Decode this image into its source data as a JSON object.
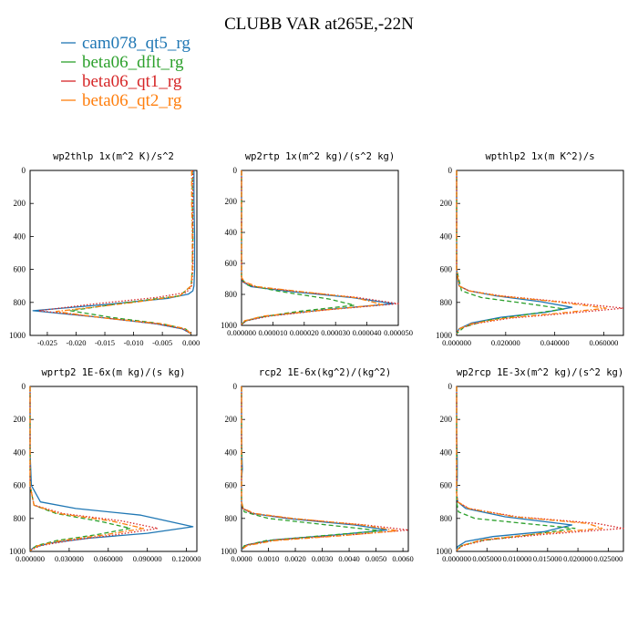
{
  "title": "CLUBB VAR at265E,-22N",
  "legend": [
    {
      "name": "cam078_qt5_rg",
      "color": "#1f77b4",
      "dash": "solid"
    },
    {
      "name": "beta06_dflt_rg",
      "color": "#2ca02c",
      "dash": "dashed"
    },
    {
      "name": "beta06_qt1_rg",
      "color": "#d62728",
      "dash": "dotted"
    },
    {
      "name": "beta06_qt2_rg",
      "color": "#ff7f0e",
      "dash": "dashdot"
    }
  ],
  "chart_data": [
    {
      "type": "line",
      "title": "wp2thlp  1x(m^2 K)/s^2",
      "ylim": [
        1000,
        0
      ],
      "yticks": [
        "0",
        "200",
        "400",
        "600",
        "800",
        "1000"
      ],
      "xlim": [
        -0.028,
        0.001
      ],
      "xticks": [
        {
          "v": -0.025,
          "label": "-0.025"
        },
        {
          "v": -0.02,
          "label": "-0.020"
        },
        {
          "v": -0.015,
          "label": "-0.015"
        },
        {
          "v": -0.01,
          "label": "-0.010"
        },
        {
          "v": -0.005,
          "label": "-0.005"
        },
        {
          "v": 0.0,
          "label": "0.000"
        }
      ],
      "series": [
        {
          "name": "cam078_qt5_rg",
          "x": [
            0.0005,
            0.0005,
            0.0006,
            0.0006,
            0.0005,
            0.0003,
            -0.0005,
            -0.004,
            -0.014,
            -0.0275,
            -0.016,
            -0.006,
            -0.0015,
            0
          ],
          "y": [
            0,
            200,
            400,
            600,
            700,
            730,
            750,
            775,
            810,
            850,
            890,
            930,
            960,
            990
          ]
        },
        {
          "name": "beta06_dflt_rg",
          "x": [
            0.0002,
            0.0002,
            0.0003,
            0.0002,
            0,
            -0.002,
            -0.011,
            -0.021,
            -0.014,
            -0.005,
            -0.001,
            0
          ],
          "y": [
            0,
            200,
            400,
            600,
            700,
            760,
            800,
            850,
            890,
            930,
            960,
            990
          ]
        },
        {
          "name": "beta06_qt1_rg",
          "x": [
            0.0003,
            0.0003,
            0.0003,
            0.0003,
            0.0001,
            -0.0008,
            -0.006,
            -0.017,
            -0.0265,
            -0.016,
            -0.006,
            -0.0015,
            0
          ],
          "y": [
            0,
            200,
            400,
            600,
            700,
            740,
            770,
            810,
            850,
            890,
            930,
            960,
            990
          ]
        },
        {
          "name": "beta06_qt2_rg",
          "x": [
            0.0001,
            0.0001,
            0.0002,
            0.0002,
            0,
            -0.002,
            -0.01,
            -0.0235,
            -0.015,
            -0.005,
            -0.001,
            0
          ],
          "y": [
            0,
            200,
            400,
            600,
            700,
            760,
            800,
            855,
            895,
            930,
            960,
            990
          ]
        }
      ]
    },
    {
      "type": "line",
      "title": "wp2rtp  1x(m^2 kg)/(s^2 kg)",
      "ylim": [
        1000,
        0
      ],
      "yticks": [
        "0",
        "200",
        "400",
        "600",
        "800",
        "1000"
      ],
      "xlim": [
        0,
        5e-05
      ],
      "xticks": [
        {
          "v": 0,
          "label": "0.000000"
        },
        {
          "v": 1e-05,
          "label": "0.000010"
        },
        {
          "v": 2e-05,
          "label": "0.000020"
        },
        {
          "v": 3e-05,
          "label": "0.000030"
        },
        {
          "v": 4e-05,
          "label": "0.000040"
        },
        {
          "v": 5e-05,
          "label": "0.000050"
        }
      ],
      "series": [
        {
          "name": "cam078_qt5_rg",
          "x": [
            0,
            0,
            0,
            0,
            0,
            5e-07,
            3e-06,
            1.5e-05,
            3.5e-05,
            4.85e-05,
            2.6e-05,
            8e-06,
            1.5e-06,
            0
          ],
          "y": [
            0,
            200,
            400,
            600,
            690,
            720,
            750,
            780,
            820,
            860,
            900,
            940,
            970,
            995
          ]
        },
        {
          "name": "beta06_dflt_rg",
          "x": [
            0,
            0,
            0,
            0,
            0,
            2e-06,
            1.2e-05,
            2.8e-05,
            3.6e-05,
            1.8e-05,
            5e-06,
            1e-06,
            0
          ],
          "y": [
            0,
            200,
            400,
            600,
            700,
            740,
            780,
            830,
            870,
            910,
            950,
            975,
            995
          ]
        },
        {
          "name": "beta06_qt1_rg",
          "x": [
            0,
            0,
            0,
            0,
            0,
            5e-07,
            4e-06,
            1.7e-05,
            3.7e-05,
            5e-05,
            2.7e-05,
            9e-06,
            1.5e-06,
            0
          ],
          "y": [
            0,
            200,
            400,
            600,
            690,
            720,
            750,
            780,
            820,
            860,
            900,
            940,
            970,
            995
          ]
        },
        {
          "name": "beta06_qt2_rg",
          "x": [
            0,
            0,
            0,
            0,
            0,
            1e-06,
            5e-06,
            1.8e-05,
            3.6e-05,
            4.5e-05,
            2.4e-05,
            7e-06,
            1e-06,
            0
          ],
          "y": [
            0,
            200,
            400,
            600,
            690,
            720,
            750,
            780,
            820,
            865,
            905,
            940,
            970,
            995
          ]
        }
      ]
    },
    {
      "type": "line",
      "title": "wpthlp2  1x(m K^2)/s",
      "ylim": [
        1000,
        0
      ],
      "yticks": [
        "0",
        "200",
        "400",
        "600",
        "800",
        "1000"
      ],
      "xlim": [
        0,
        0.068
      ],
      "xticks": [
        {
          "v": 0,
          "label": "0.000000"
        },
        {
          "v": 0.02,
          "label": "0.020000"
        },
        {
          "v": 0.04,
          "label": "0.040000"
        },
        {
          "v": 0.06,
          "label": "0.060000"
        }
      ],
      "series": [
        {
          "name": "cam078_qt5_rg",
          "x": [
            0,
            0,
            0,
            0,
            0.001,
            0.005,
            0.016,
            0.034,
            0.047,
            0.036,
            0.018,
            0.006,
            0.001,
            0
          ],
          "y": [
            0,
            200,
            400,
            600,
            700,
            730,
            760,
            795,
            830,
            860,
            890,
            925,
            960,
            990
          ]
        },
        {
          "name": "beta06_dflt_rg",
          "x": [
            0,
            0,
            0,
            0,
            0.002,
            0.01,
            0.03,
            0.044,
            0.03,
            0.012,
            0.003,
            0
          ],
          "y": [
            0,
            200,
            400,
            600,
            730,
            770,
            810,
            840,
            870,
            910,
            950,
            990
          ]
        },
        {
          "name": "beta06_qt1_rg",
          "x": [
            0,
            0,
            0,
            0,
            0.001,
            0.005,
            0.018,
            0.042,
            0.068,
            0.046,
            0.022,
            0.007,
            0.001,
            0
          ],
          "y": [
            0,
            200,
            400,
            600,
            700,
            730,
            760,
            795,
            835,
            865,
            895,
            930,
            960,
            990
          ]
        },
        {
          "name": "beta06_qt2_rg",
          "x": [
            0,
            0,
            0,
            0,
            0.001,
            0.005,
            0.017,
            0.04,
            0.061,
            0.042,
            0.02,
            0.006,
            0.001,
            0
          ],
          "y": [
            0,
            200,
            400,
            600,
            700,
            730,
            760,
            795,
            835,
            865,
            895,
            930,
            960,
            990
          ]
        }
      ]
    },
    {
      "type": "line",
      "title": "wprtp2  1E-6x(m kg)/(s kg)",
      "ylim": [
        1000,
        0
      ],
      "yticks": [
        "0",
        "200",
        "400",
        "600",
        "800",
        "1000"
      ],
      "xlim": [
        0,
        0.128
      ],
      "xticks": [
        {
          "v": 0,
          "label": "0.000000"
        },
        {
          "v": 0.03,
          "label": "0.030000"
        },
        {
          "v": 0.06,
          "label": "0.060000"
        },
        {
          "v": 0.09,
          "label": "0.090000"
        },
        {
          "v": 0.12,
          "label": "0.120000"
        }
      ],
      "series": [
        {
          "name": "cam078_qt5_rg",
          "x": [
            0,
            0,
            0,
            0.001,
            0.008,
            0.035,
            0.085,
            0.125,
            0.09,
            0.045,
            0.015,
            0.003,
            0
          ],
          "y": [
            0,
            200,
            400,
            600,
            700,
            740,
            780,
            850,
            890,
            920,
            950,
            975,
            995
          ]
        },
        {
          "name": "beta06_dflt_rg",
          "x": [
            0,
            0,
            0,
            0,
            0.003,
            0.02,
            0.055,
            0.077,
            0.05,
            0.02,
            0.005,
            0
          ],
          "y": [
            0,
            200,
            400,
            600,
            720,
            770,
            820,
            860,
            900,
            935,
            965,
            995
          ]
        },
        {
          "name": "beta06_qt1_rg",
          "x": [
            0,
            0,
            0,
            0,
            0.003,
            0.025,
            0.07,
            0.098,
            0.065,
            0.03,
            0.008,
            0
          ],
          "y": [
            0,
            200,
            400,
            600,
            720,
            770,
            815,
            860,
            900,
            935,
            965,
            995
          ]
        },
        {
          "name": "beta06_qt2_rg",
          "x": [
            0,
            0,
            0,
            0,
            0.003,
            0.022,
            0.062,
            0.087,
            0.057,
            0.024,
            0.006,
            0
          ],
          "y": [
            0,
            200,
            400,
            600,
            720,
            770,
            815,
            860,
            900,
            935,
            965,
            995
          ]
        }
      ]
    },
    {
      "type": "line",
      "title": "rcp2  1E-6x(kg^2)/(kg^2)",
      "ylim": [
        1000,
        0
      ],
      "yticks": [
        "0",
        "200",
        "400",
        "600",
        "800",
        "1000"
      ],
      "xlim": [
        0,
        0.0062
      ],
      "xticks": [
        {
          "v": 0,
          "label": "0.0000"
        },
        {
          "v": 0.001,
          "label": "0.0010"
        },
        {
          "v": 0.002,
          "label": "0.0020"
        },
        {
          "v": 0.003,
          "label": "0.0030"
        },
        {
          "v": 0.004,
          "label": "0.0040"
        },
        {
          "v": 0.005,
          "label": "0.0050"
        },
        {
          "v": 0.006,
          "label": "0.0060"
        }
      ],
      "series": [
        {
          "name": "cam078_qt5_rg",
          "x": [
            0,
            0,
            2e-05,
            3e-05,
            0,
            0,
            5e-05,
            0.0004,
            0.0017,
            0.0042,
            0.0054,
            0.0035,
            0.0012,
            0.0002,
            0
          ],
          "y": [
            0,
            300,
            450,
            500,
            560,
            700,
            740,
            770,
            800,
            840,
            870,
            900,
            930,
            960,
            990
          ]
        },
        {
          "name": "beta06_dflt_rg",
          "x": [
            0,
            0,
            0,
            0.0001,
            0.001,
            0.0032,
            0.0052,
            0.003,
            0.0009,
            0.0001,
            0
          ],
          "y": [
            0,
            500,
            700,
            760,
            800,
            840,
            875,
            905,
            935,
            965,
            990
          ]
        },
        {
          "name": "beta06_qt1_rg",
          "x": [
            0,
            0,
            0,
            5e-05,
            0.0004,
            0.0018,
            0.0046,
            0.0062,
            0.004,
            0.0013,
            0.0002,
            0
          ],
          "y": [
            0,
            500,
            700,
            740,
            770,
            800,
            840,
            870,
            900,
            930,
            960,
            990
          ]
        },
        {
          "name": "beta06_qt2_rg",
          "x": [
            0,
            0,
            0,
            5e-05,
            0.0005,
            0.0019,
            0.0045,
            0.0058,
            0.0037,
            0.0012,
            0.0002,
            0
          ],
          "y": [
            0,
            500,
            700,
            740,
            770,
            800,
            840,
            875,
            905,
            935,
            965,
            990
          ]
        }
      ]
    },
    {
      "type": "line",
      "title": "wp2rcp  1E-3x(m^2 kg)/(s^2 kg)",
      "ylim": [
        1000,
        0
      ],
      "yticks": [
        "0",
        "200",
        "400",
        "600",
        "800",
        "1000"
      ],
      "xlim": [
        0,
        0.0275
      ],
      "xticks": [
        {
          "v": 0,
          "label": "0.000000"
        },
        {
          "v": 0.005,
          "label": "0.005000"
        },
        {
          "v": 0.01,
          "label": "0.010000"
        },
        {
          "v": 0.015,
          "label": "0.015000"
        },
        {
          "v": 0.02,
          "label": "0.020000"
        },
        {
          "v": 0.025,
          "label": "0.025000"
        }
      ],
      "series": [
        {
          "name": "cam078_qt5_rg",
          "x": [
            0,
            0,
            0.0001,
            0.0001,
            0,
            0.0002,
            0.0015,
            0.008,
            0.019,
            0.0145,
            0.006,
            0.0015,
            0.0002,
            0
          ],
          "y": [
            0,
            300,
            450,
            550,
            650,
            700,
            740,
            790,
            840,
            880,
            910,
            940,
            970,
            995
          ]
        },
        {
          "name": "beta06_dflt_rg",
          "x": [
            0,
            0,
            0,
            0.0003,
            0.003,
            0.011,
            0.0195,
            0.012,
            0.004,
            0.0008,
            0
          ],
          "y": [
            0,
            500,
            700,
            760,
            800,
            830,
            860,
            900,
            935,
            965,
            995
          ]
        },
        {
          "name": "beta06_qt1_rg",
          "x": [
            0,
            0,
            0,
            0.0002,
            0.002,
            0.01,
            0.023,
            0.0275,
            0.015,
            0.005,
            0.001,
            0
          ],
          "y": [
            0,
            500,
            650,
            700,
            740,
            790,
            830,
            860,
            895,
            930,
            965,
            995
          ]
        },
        {
          "name": "beta06_qt2_rg",
          "x": [
            0,
            0,
            0,
            0.0002,
            0.002,
            0.0095,
            0.0215,
            0.024,
            0.013,
            0.0042,
            0.0008,
            0
          ],
          "y": [
            0,
            500,
            650,
            700,
            740,
            790,
            830,
            860,
            895,
            930,
            965,
            995
          ]
        }
      ]
    }
  ]
}
